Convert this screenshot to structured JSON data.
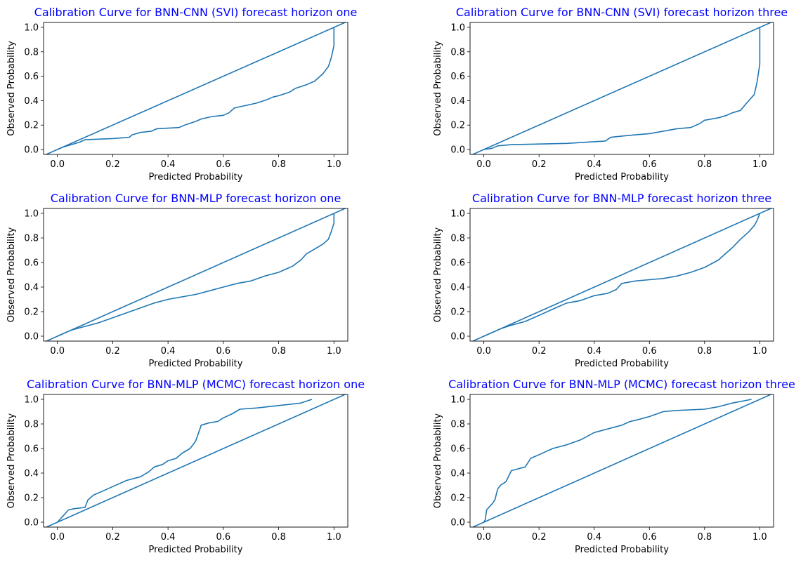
{
  "chart_data": [
    {
      "type": "line",
      "title": "Calibration Curve for BNN-CNN (SVI) forecast horizon one",
      "xlabel": "Predicted Probability",
      "ylabel": "Observed Probability",
      "xlim": [
        -0.05,
        1.05
      ],
      "ylim": [
        -0.04,
        1.04
      ],
      "xticks": [
        "0.0",
        "0.2",
        "0.4",
        "0.6",
        "0.8",
        "1.0"
      ],
      "yticks": [
        "0.0",
        "0.2",
        "0.4",
        "0.6",
        "0.8",
        "1.0"
      ],
      "grid": false,
      "title_color": "#0000ff",
      "line_color": "#1f77b4",
      "series": [
        {
          "x": [
            0.0,
            0.02,
            0.05,
            0.08,
            0.1,
            0.2,
            0.26,
            0.27,
            0.3,
            0.34,
            0.36,
            0.44,
            0.46,
            0.5,
            0.52,
            0.56,
            0.6,
            0.62,
            0.64,
            0.68,
            0.72,
            0.76,
            0.78,
            0.8,
            0.84,
            0.86,
            0.9,
            0.93,
            0.96,
            0.98,
            0.99,
            1.0,
            1.0
          ],
          "y": [
            0.0,
            0.02,
            0.04,
            0.06,
            0.08,
            0.09,
            0.1,
            0.12,
            0.14,
            0.15,
            0.17,
            0.18,
            0.2,
            0.23,
            0.25,
            0.27,
            0.28,
            0.3,
            0.34,
            0.36,
            0.38,
            0.41,
            0.43,
            0.44,
            0.47,
            0.5,
            0.53,
            0.56,
            0.62,
            0.68,
            0.75,
            0.85,
            1.0
          ]
        },
        {
          "x": [
            -0.05,
            1.05
          ],
          "y": [
            -0.05,
            1.05
          ]
        }
      ]
    },
    {
      "type": "line",
      "title": "Calibration Curve for BNN-CNN (SVI) forecast horizon three",
      "xlabel": "Predicted Probability",
      "ylabel": "Observed Probability",
      "xlim": [
        -0.05,
        1.05
      ],
      "ylim": [
        -0.04,
        1.04
      ],
      "xticks": [
        "0.0",
        "0.2",
        "0.4",
        "0.6",
        "0.8",
        "1.0"
      ],
      "yticks": [
        "0.0",
        "0.2",
        "0.4",
        "0.6",
        "0.8",
        "1.0"
      ],
      "grid": false,
      "title_color": "#0000ff",
      "line_color": "#1f77b4",
      "series": [
        {
          "x": [
            0.0,
            0.03,
            0.05,
            0.1,
            0.3,
            0.44,
            0.46,
            0.5,
            0.55,
            0.6,
            0.65,
            0.7,
            0.75,
            0.78,
            0.8,
            0.85,
            0.88,
            0.9,
            0.93,
            0.96,
            0.98,
            0.99,
            1.0,
            1.0,
            1.0
          ],
          "y": [
            0.0,
            0.01,
            0.03,
            0.04,
            0.05,
            0.07,
            0.1,
            0.11,
            0.12,
            0.13,
            0.15,
            0.17,
            0.18,
            0.21,
            0.24,
            0.26,
            0.28,
            0.3,
            0.32,
            0.4,
            0.45,
            0.55,
            0.7,
            0.85,
            1.0
          ]
        },
        {
          "x": [
            -0.05,
            1.05
          ],
          "y": [
            -0.05,
            1.05
          ]
        }
      ]
    },
    {
      "type": "line",
      "title": "Calibration Curve for BNN-MLP forecast horizon one",
      "xlabel": "Predicted Probability",
      "ylabel": "Observed Probability",
      "xlim": [
        -0.05,
        1.05
      ],
      "ylim": [
        -0.04,
        1.04
      ],
      "xticks": [
        "0.0",
        "0.2",
        "0.4",
        "0.6",
        "0.8",
        "1.0"
      ],
      "yticks": [
        "0.0",
        "0.2",
        "0.4",
        "0.6",
        "0.8",
        "1.0"
      ],
      "grid": false,
      "title_color": "#0000ff",
      "line_color": "#1f77b4",
      "series": [
        {
          "x": [
            0.0,
            0.02,
            0.05,
            0.1,
            0.15,
            0.2,
            0.25,
            0.3,
            0.35,
            0.4,
            0.45,
            0.5,
            0.55,
            0.6,
            0.65,
            0.7,
            0.75,
            0.8,
            0.85,
            0.88,
            0.9,
            0.93,
            0.96,
            0.98,
            0.99,
            1.0,
            1.0
          ],
          "y": [
            0.0,
            0.02,
            0.05,
            0.08,
            0.11,
            0.15,
            0.19,
            0.23,
            0.27,
            0.3,
            0.32,
            0.34,
            0.37,
            0.4,
            0.43,
            0.45,
            0.49,
            0.52,
            0.57,
            0.62,
            0.67,
            0.71,
            0.75,
            0.79,
            0.85,
            0.92,
            1.0
          ]
        },
        {
          "x": [
            -0.05,
            1.05
          ],
          "y": [
            -0.05,
            1.05
          ]
        }
      ]
    },
    {
      "type": "line",
      "title": "Calibration Curve for BNN-MLP forecast horizon three",
      "xlabel": "Predicted Probability",
      "ylabel": "Observed Probability",
      "xlim": [
        -0.05,
        1.05
      ],
      "ylim": [
        -0.04,
        1.04
      ],
      "xticks": [
        "0.0",
        "0.2",
        "0.4",
        "0.6",
        "0.8",
        "1.0"
      ],
      "yticks": [
        "0.0",
        "0.2",
        "0.4",
        "0.6",
        "0.8",
        "1.0"
      ],
      "grid": false,
      "title_color": "#0000ff",
      "line_color": "#1f77b4",
      "series": [
        {
          "x": [
            0.0,
            0.03,
            0.06,
            0.1,
            0.15,
            0.2,
            0.25,
            0.3,
            0.35,
            0.4,
            0.45,
            0.48,
            0.5,
            0.55,
            0.6,
            0.65,
            0.7,
            0.75,
            0.8,
            0.85,
            0.88,
            0.9,
            0.93,
            0.96,
            0.98,
            0.99,
            1.0
          ],
          "y": [
            0.0,
            0.03,
            0.06,
            0.09,
            0.12,
            0.17,
            0.22,
            0.27,
            0.29,
            0.33,
            0.35,
            0.38,
            0.43,
            0.45,
            0.46,
            0.47,
            0.49,
            0.52,
            0.56,
            0.62,
            0.68,
            0.72,
            0.79,
            0.85,
            0.9,
            0.94,
            1.0
          ]
        },
        {
          "x": [
            -0.05,
            1.05
          ],
          "y": [
            -0.05,
            1.05
          ]
        }
      ]
    },
    {
      "type": "line",
      "title": "Calibration Curve for BNN-MLP (MCMC) forecast horizon one",
      "xlabel": "Predicted Probability",
      "ylabel": "Observed Probability",
      "xlim": [
        -0.05,
        1.05
      ],
      "ylim": [
        -0.04,
        1.04
      ],
      "xticks": [
        "0.0",
        "0.2",
        "0.4",
        "0.6",
        "0.8",
        "1.0"
      ],
      "yticks": [
        "0.0",
        "0.2",
        "0.4",
        "0.6",
        "0.8",
        "1.0"
      ],
      "grid": false,
      "title_color": "#0000ff",
      "line_color": "#1f77b4",
      "series": [
        {
          "x": [
            0.0,
            0.02,
            0.04,
            0.06,
            0.1,
            0.11,
            0.13,
            0.16,
            0.2,
            0.25,
            0.3,
            0.33,
            0.35,
            0.38,
            0.4,
            0.43,
            0.45,
            0.48,
            0.5,
            0.52,
            0.55,
            0.58,
            0.6,
            0.63,
            0.66,
            0.72,
            0.8,
            0.88,
            0.92
          ],
          "y": [
            0.0,
            0.05,
            0.1,
            0.11,
            0.12,
            0.18,
            0.22,
            0.25,
            0.29,
            0.34,
            0.37,
            0.41,
            0.45,
            0.47,
            0.5,
            0.52,
            0.56,
            0.6,
            0.66,
            0.79,
            0.81,
            0.82,
            0.85,
            0.88,
            0.92,
            0.93,
            0.95,
            0.97,
            1.0
          ]
        },
        {
          "x": [
            -0.05,
            1.05
          ],
          "y": [
            -0.05,
            1.05
          ]
        }
      ]
    },
    {
      "type": "line",
      "title": "Calibration Curve for BNN-MLP (MCMC) forecast horizon three",
      "xlabel": "Predicted Probability",
      "ylabel": "Observed Probability",
      "xlim": [
        -0.05,
        1.05
      ],
      "ylim": [
        -0.04,
        1.04
      ],
      "xticks": [
        "0.0",
        "0.2",
        "0.4",
        "0.6",
        "0.8",
        "1.0"
      ],
      "yticks": [
        "0.0",
        "0.2",
        "0.4",
        "0.6",
        "0.8",
        "1.0"
      ],
      "grid": false,
      "title_color": "#0000ff",
      "line_color": "#1f77b4",
      "series": [
        {
          "x": [
            0.0,
            0.005,
            0.01,
            0.03,
            0.04,
            0.05,
            0.06,
            0.08,
            0.1,
            0.15,
            0.17,
            0.2,
            0.25,
            0.3,
            0.35,
            0.4,
            0.45,
            0.5,
            0.53,
            0.55,
            0.6,
            0.65,
            0.7,
            0.8,
            0.85,
            0.9,
            0.97
          ],
          "y": [
            0.0,
            0.02,
            0.1,
            0.15,
            0.18,
            0.27,
            0.3,
            0.33,
            0.42,
            0.45,
            0.52,
            0.55,
            0.6,
            0.63,
            0.67,
            0.73,
            0.76,
            0.79,
            0.82,
            0.83,
            0.86,
            0.9,
            0.91,
            0.92,
            0.94,
            0.97,
            1.0
          ]
        },
        {
          "x": [
            -0.05,
            1.05
          ],
          "y": [
            -0.05,
            1.05
          ]
        }
      ]
    }
  ]
}
